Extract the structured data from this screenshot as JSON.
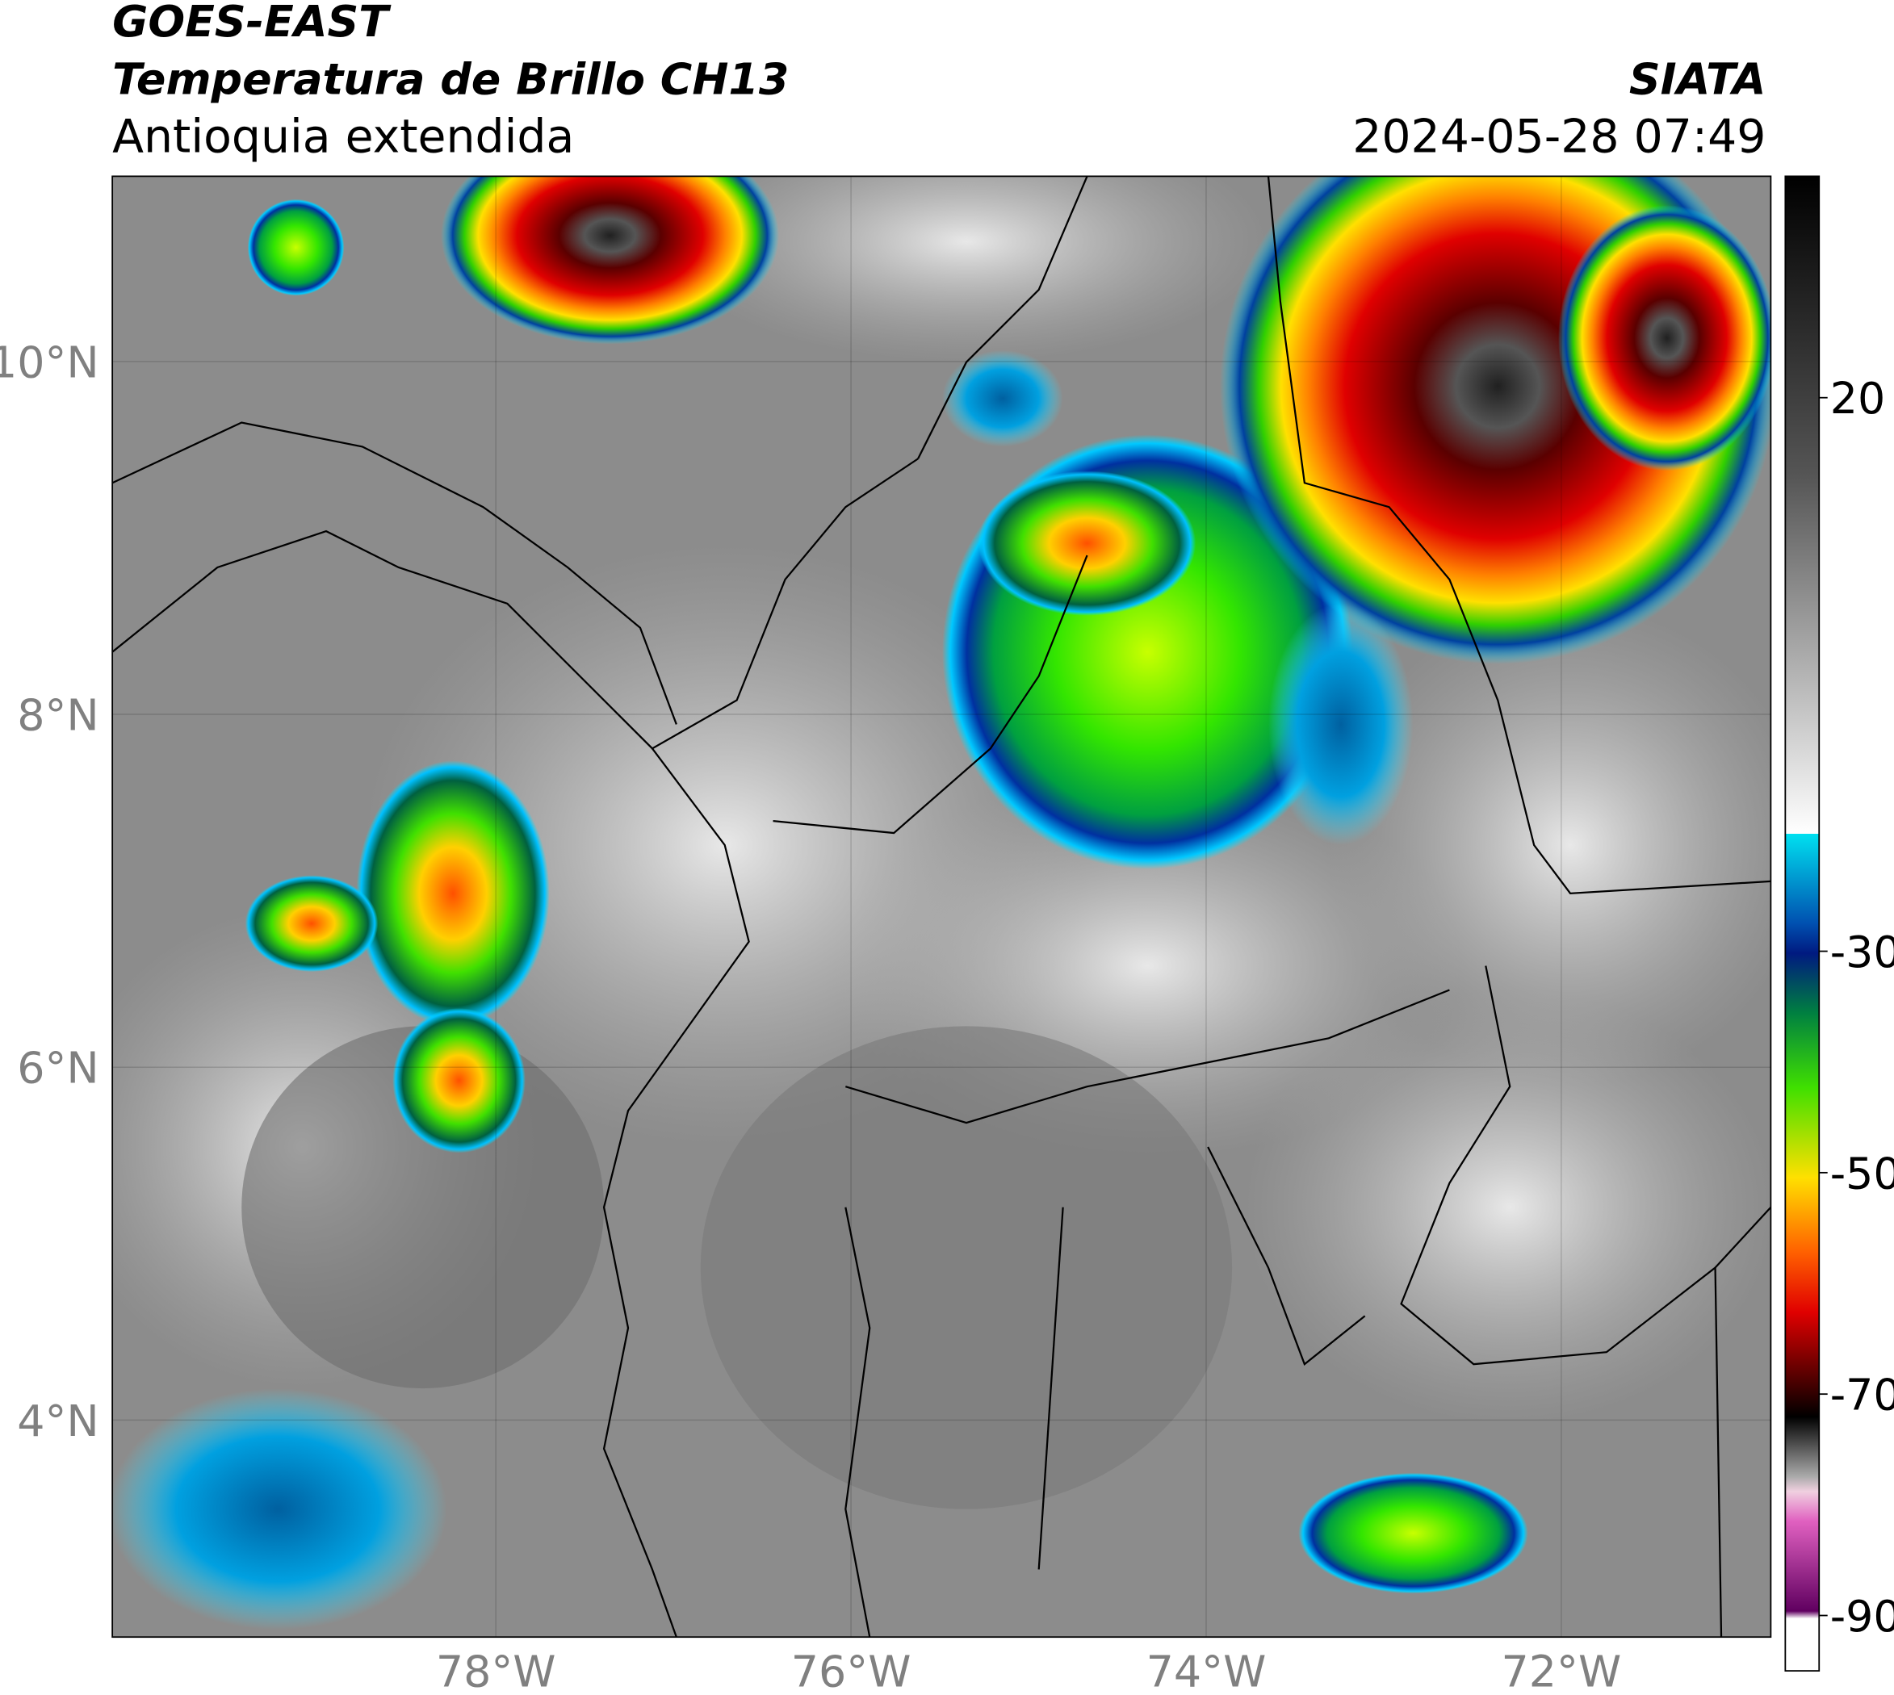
{
  "header": {
    "title": "GOES-EAST",
    "product": "Temperatura de Brillo CH13",
    "region": "Antioquia extendida",
    "source": "SIATA",
    "datetime": "2024-05-28 07:49"
  },
  "map": {
    "xlim": [
      -80.16,
      -70.82
    ],
    "ylim": [
      2.77,
      11.05
    ],
    "xticks": [
      {
        "value": -78,
        "label": "78°W"
      },
      {
        "value": -76,
        "label": "76°W"
      },
      {
        "value": -74,
        "label": "74°W"
      },
      {
        "value": -72,
        "label": "72°W"
      }
    ],
    "yticks": [
      {
        "value": 10,
        "label": "10°N"
      },
      {
        "value": 8,
        "label": "8°N"
      },
      {
        "value": 6,
        "label": "6°N"
      },
      {
        "value": 4,
        "label": "4°N"
      }
    ],
    "grid": true
  },
  "colorbar": {
    "ylim": [
      -95,
      40
    ],
    "yticks": [
      20,
      -30,
      -50,
      -70,
      -90
    ]
  }
}
